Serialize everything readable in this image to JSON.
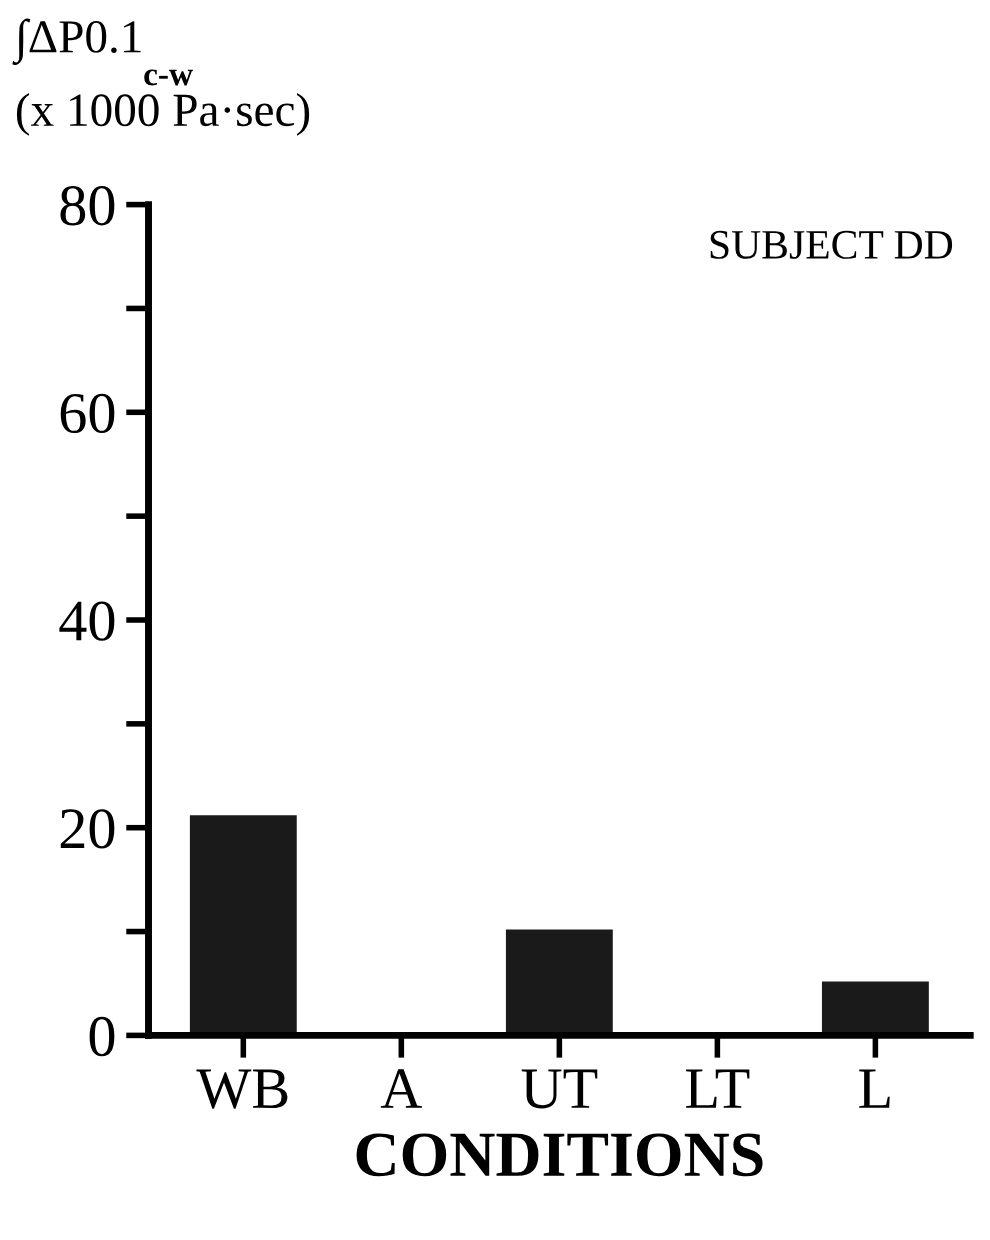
{
  "chart_data": {
    "type": "bar",
    "ylabel": "∫ΔP0.1$_{c-w}$\n(x 1000 Pa·sec)",
    "xlabel": "CONDITIONS",
    "annotations": [
      "SUBJECT DD"
    ],
    "categories": [
      "WB",
      "A",
      "UT",
      "LT",
      "L"
    ],
    "values": [
      21,
      0,
      10,
      0,
      5
    ],
    "color": "#1a1a1a",
    "ylim": [
      0,
      80
    ],
    "yticks": [
      0,
      {
        "value": 10,
        "label": null
      },
      20,
      {
        "value": 30,
        "label": null
      },
      40,
      {
        "value": 50,
        "label": null
      },
      60,
      {
        "value": 70,
        "label": null
      },
      80
    ],
    "grid": false
  }
}
